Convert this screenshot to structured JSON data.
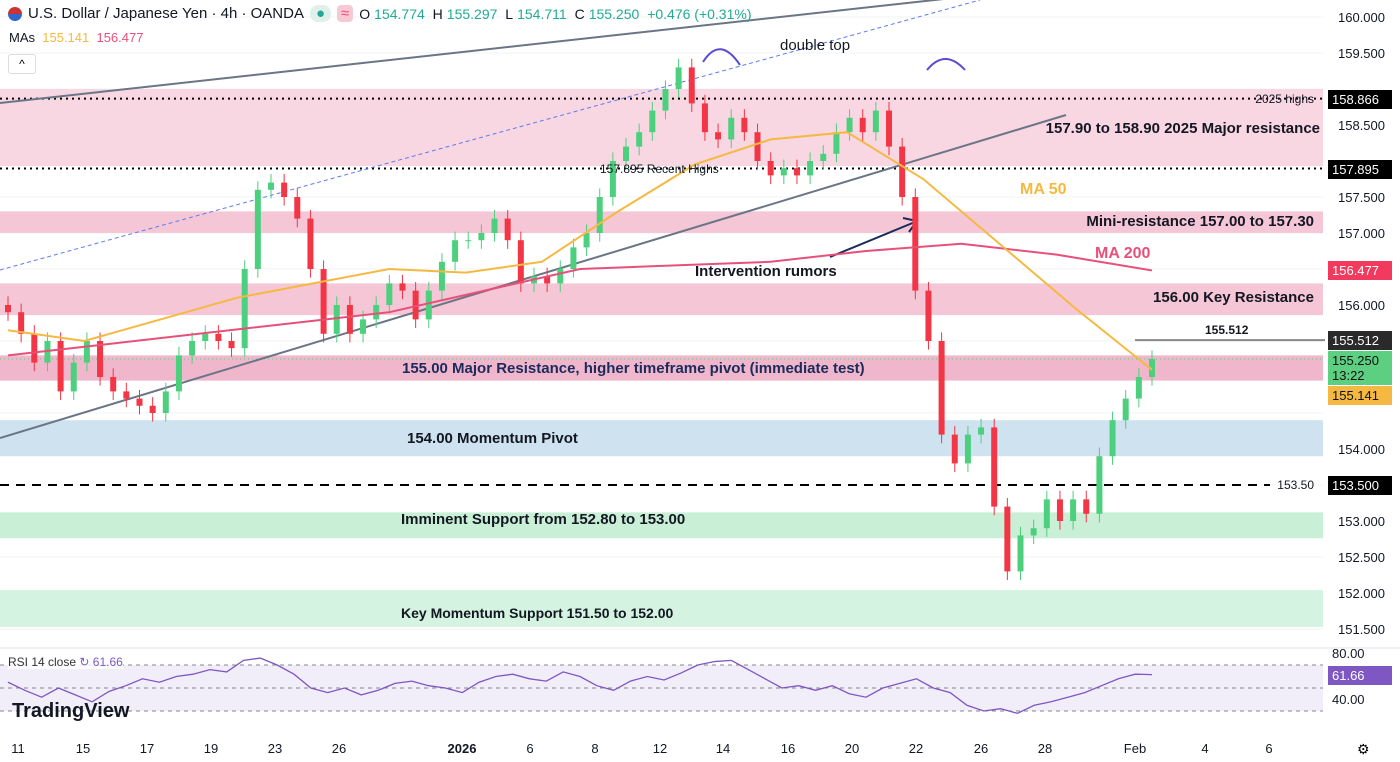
{
  "header": {
    "title": "U.S. Dollar / Japanese Yen · 4h · OANDA",
    "o_label": "O",
    "o": "154.774",
    "h_label": "H",
    "h": "155.297",
    "l_label": "L",
    "l": "154.711",
    "c_label": "C",
    "c": "155.250",
    "change": "+0.476 (+0.31%)",
    "mas_label": "MAs",
    "ma50": "155.141",
    "ma200": "156.477",
    "collapse_icon": "chevron-up-icon"
  },
  "colors": {
    "up": "#26a69a",
    "bull": "#4cd07d",
    "bear": "#f23645",
    "ma50": "#f5b941",
    "ma200": "#e7507a",
    "rsi": "#7e57c2"
  },
  "annotations": {
    "double_top": "double top",
    "resistance_2025": "157.90 to 158.90 2025 Major resistance",
    "highs_2025": "2025 highs",
    "recent_highs": "157.895 Recent Highs",
    "ma50": "MA 50",
    "ma200": "MA 200",
    "mini_res": "Mini-resistance 157.00 to 157.30",
    "intervention": "Intervention rumors",
    "key_res": "156.00 Key Resistance",
    "level_155512": "155.512",
    "major_res": "155.00 Major Resistance, higher timeframe pivot (immediate test)",
    "momentum_pivot": "154.00 Momentum Pivot",
    "level_15350": "153.50",
    "imminent_support": "Imminent Support from 152.80 to 153.00",
    "key_support": "Key Momentum Support 151.50 to 152.00"
  },
  "price_labels": {
    "p158866": "158.866",
    "p157895": "157.895",
    "p156477": "156.477",
    "p155512": "155.512",
    "p155250": "155.250",
    "countdown": "13:22",
    "p155141": "155.141",
    "p153500": "153.500"
  },
  "rsi": {
    "label": "RSI 14 close",
    "value": "61.66",
    "ticks": [
      "80.00",
      "40.00"
    ]
  },
  "logo": "TradingView",
  "chart_data": {
    "type": "candlestick",
    "title": "U.S. Dollar / Japanese Yen · 4h · OANDA",
    "ylim": [
      151.2,
      160.2
    ],
    "y_ticks": [
      "160.000",
      "159.500",
      "159.000",
      "158.500",
      "158.000",
      "157.500",
      "157.000",
      "156.500",
      "156.000",
      "155.500",
      "155.000",
      "154.500",
      "154.000",
      "153.500",
      "153.000",
      "152.500",
      "152.000",
      "151.500"
    ],
    "x_ticks": [
      "11",
      "15",
      "17",
      "19",
      "23",
      "26",
      "2026",
      "6",
      "8",
      "12",
      "14",
      "16",
      "20",
      "22",
      "26",
      "28",
      "Feb",
      "4",
      "6"
    ],
    "closes": [
      155.9,
      155.6,
      155.2,
      155.5,
      154.8,
      155.2,
      155.5,
      155.0,
      154.8,
      154.7,
      154.6,
      154.5,
      154.8,
      155.3,
      155.5,
      155.6,
      155.5,
      155.4,
      156.5,
      157.6,
      157.7,
      157.5,
      157.2,
      156.5,
      155.6,
      156.0,
      155.6,
      155.8,
      156.0,
      156.3,
      156.2,
      155.8,
      156.2,
      156.6,
      156.9,
      156.9,
      157.0,
      157.2,
      156.9,
      156.3,
      156.4,
      156.3,
      156.5,
      156.8,
      157.0,
      157.5,
      158.0,
      158.2,
      158.4,
      158.7,
      159.0,
      159.3,
      158.8,
      158.4,
      158.3,
      158.6,
      158.4,
      158.0,
      157.8,
      157.9,
      157.8,
      158.0,
      158.1,
      158.4,
      158.6,
      158.4,
      158.7,
      158.2,
      157.5,
      156.2,
      155.5,
      154.2,
      153.8,
      154.2,
      154.3,
      153.2,
      152.3,
      152.8,
      152.9,
      153.3,
      153.0,
      153.3,
      153.1,
      153.9,
      154.4,
      154.7,
      155.0,
      155.25
    ],
    "ma50": [
      155.65,
      155.5,
      155.8,
      156.1,
      156.3,
      156.5,
      156.45,
      156.6,
      157.3,
      157.95,
      158.3,
      158.4,
      157.75,
      156.85,
      155.95,
      155.1
    ],
    "ma200": [
      155.3,
      155.45,
      155.6,
      155.75,
      155.9,
      156.2,
      156.5,
      156.55,
      156.6,
      156.75,
      156.85,
      156.7,
      156.48
    ],
    "zones": [
      {
        "from": 157.93,
        "to": 159.0,
        "color": "#f8d7e3"
      },
      {
        "from": 157.0,
        "to": 157.3,
        "color": "#f5c6d6"
      },
      {
        "from": 155.86,
        "to": 156.3,
        "color": "#f5c6d6"
      },
      {
        "from": 154.95,
        "to": 155.3,
        "color": "#f0b6cc"
      },
      {
        "from": 153.9,
        "to": 154.4,
        "color": "#cfe2f0"
      },
      {
        "from": 152.76,
        "to": 153.12,
        "color": "#c9efd6"
      },
      {
        "from": 151.53,
        "to": 152.04,
        "color": "#d4f3e0"
      }
    ],
    "levels": [
      158.866,
      157.895,
      153.5,
      155.512
    ],
    "rsi_values": [
      55,
      48,
      42,
      50,
      44,
      38,
      47,
      52,
      58,
      55,
      60,
      62,
      66,
      64,
      74,
      76,
      70,
      62,
      50,
      46,
      50,
      44,
      48,
      54,
      56,
      52,
      50,
      46,
      55,
      60,
      62,
      58,
      56,
      64,
      60,
      52,
      48,
      56,
      60,
      57,
      63,
      70,
      73,
      74,
      66,
      58,
      50,
      52,
      48,
      52,
      45,
      42,
      50,
      54,
      58,
      50,
      46,
      35,
      30,
      32,
      28,
      35,
      38,
      42,
      46,
      52,
      58,
      62,
      61.66
    ],
    "rsi_ylim": [
      20,
      85
    ],
    "rsi_levels": [
      70,
      50,
      30
    ]
  }
}
